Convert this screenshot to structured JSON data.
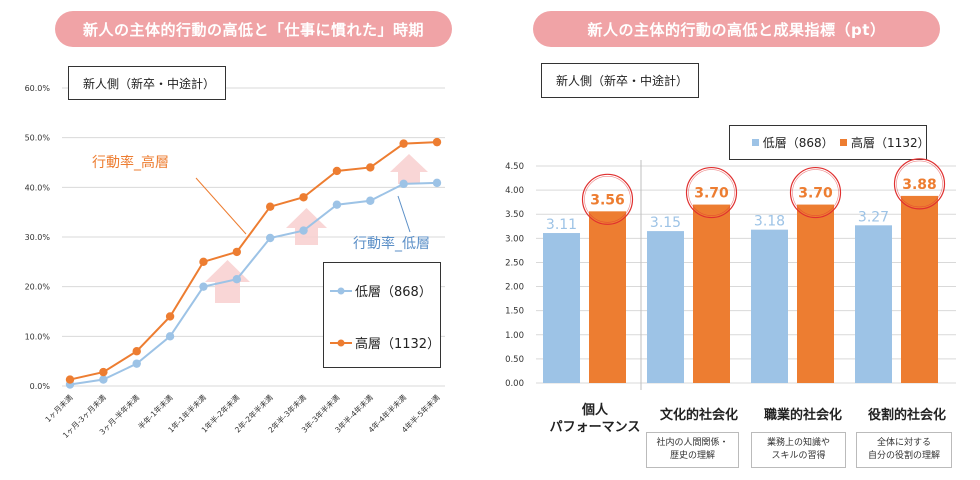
{
  "left_panel": {
    "title": "新人の主体的行動の高低と「仕事に慣れた」時期",
    "sample_box": "新人側（新卒・中途計）",
    "annotation_high": "行動率_高層",
    "annotation_low": "行動率_低層",
    "legend": [
      "低層（868）",
      "高層（1132）"
    ]
  },
  "right_panel": {
    "title": "新人の主体的行動の高低と成果指標（pt）",
    "sample_box": "新人側（新卒・中途計）",
    "legend": [
      "低層（868）",
      "高層（1132）"
    ],
    "descriptions": [
      "社内の人間関係・\n歴史の理解",
      "業務上の知識や\nスキルの習得",
      "全体に対する\n自分の役割の理解"
    ]
  },
  "colors": {
    "low": "#9dc3e6",
    "high": "#ed7d31",
    "pill": "#f0a3a6",
    "circle": "#e03030"
  },
  "chart_data": [
    {
      "type": "line",
      "title": "新人の主体的行動の高低と「仕事に慣れた」時期",
      "categories": [
        "1ヶ月未満",
        "1ヶ月-3ヶ月未満",
        "3ヶ月-半年未満",
        "半年-1年未満",
        "1年-1年半未満",
        "1年半-2年未満",
        "2年-2年半未満",
        "2年半-3年未満",
        "3年-3年半未満",
        "3年半-4年未満",
        "4年-4年半未満",
        "4年半-5年未満"
      ],
      "series": [
        {
          "name": "低層（868）",
          "values": [
            0.3,
            1.3,
            4.5,
            10.0,
            20.0,
            21.5,
            29.8,
            31.3,
            36.5,
            37.3,
            40.7,
            40.9
          ]
        },
        {
          "name": "高層（1132）",
          "values": [
            1.3,
            2.8,
            7.0,
            14.0,
            25.0,
            27.0,
            36.1,
            38.0,
            43.3,
            44.0,
            48.8,
            49.1
          ]
        }
      ],
      "yticks": [
        "0.0%",
        "10.0%",
        "20.0%",
        "30.0%",
        "40.0%",
        "50.0%",
        "60.0%"
      ],
      "ylim": [
        0,
        60
      ],
      "xlabel": "",
      "ylabel": ""
    },
    {
      "type": "bar",
      "title": "新人の主体的行動の高低と成果指標（pt）",
      "categories": [
        "個人\nパフォーマンス",
        "文化的社会化",
        "職業的社会化",
        "役割的社会化"
      ],
      "series": [
        {
          "name": "低層（868）",
          "values": [
            3.11,
            3.15,
            3.18,
            3.27
          ],
          "labels": [
            "3.11",
            "3.15",
            "3.18",
            "3.27"
          ]
        },
        {
          "name": "高層（1132）",
          "values": [
            3.56,
            3.7,
            3.7,
            3.88
          ],
          "labels": [
            "3.56",
            "3.70",
            "3.70",
            "3.88"
          ]
        }
      ],
      "yticks": [
        "0.00",
        "0.50",
        "1.00",
        "1.50",
        "2.00",
        "2.50",
        "3.00",
        "3.50",
        "4.00",
        "4.50"
      ],
      "ylim": [
        0,
        4.5
      ],
      "xlabel": "",
      "ylabel": ""
    }
  ]
}
